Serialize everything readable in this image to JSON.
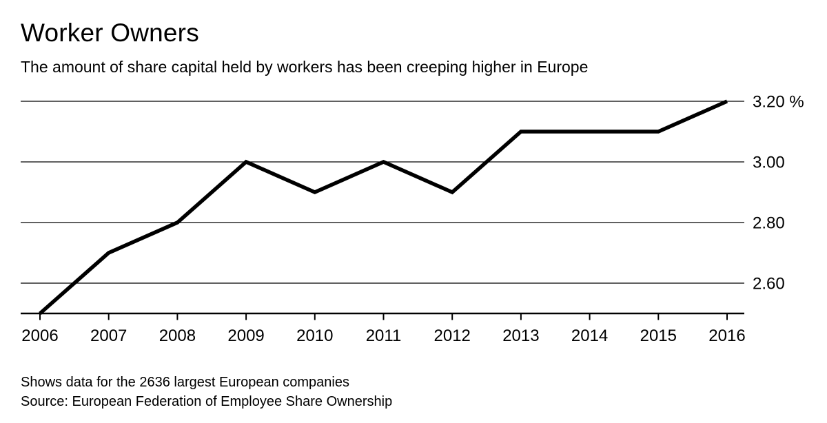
{
  "header": {
    "title": "Worker Owners",
    "subtitle": "The amount of share capital held by workers has been creeping higher in Europe"
  },
  "footer": {
    "note": "Shows data for the 2636 largest European companies",
    "source": "Source: European Federation of Employee Share Ownership"
  },
  "chart_data": {
    "type": "line",
    "title": "Worker Owners",
    "subtitle": "The amount of share capital held by workers has been creeping higher in Europe",
    "series_name": "Share capital held by workers",
    "x": [
      2006,
      2007,
      2008,
      2009,
      2010,
      2011,
      2012,
      2013,
      2014,
      2015,
      2016
    ],
    "values": [
      2.5,
      2.7,
      2.8,
      3.0,
      2.9,
      3.0,
      2.9,
      3.1,
      3.1,
      3.1,
      3.2
    ],
    "unit": "%",
    "ylim": [
      2.5,
      3.2
    ],
    "yticks": [
      {
        "value": 2.6,
        "label": "2.60"
      },
      {
        "value": 2.8,
        "label": "2.80"
      },
      {
        "value": 3.0,
        "label": "3.00"
      },
      {
        "value": 3.2,
        "label": "3.20 %"
      }
    ],
    "xtick_labels": [
      "2006",
      "2007",
      "2008",
      "2009",
      "2010",
      "2011",
      "2012",
      "2013",
      "2014",
      "2015",
      "2016"
    ],
    "grid": "horizontal-only",
    "legend": "none",
    "ytick_position": "right",
    "line_color": "#000000",
    "grid_color": "#000000",
    "background": "#ffffff",
    "note": "Shows data for the 2636 largest European companies",
    "source": "Source: European Federation of Employee Share Ownership"
  }
}
